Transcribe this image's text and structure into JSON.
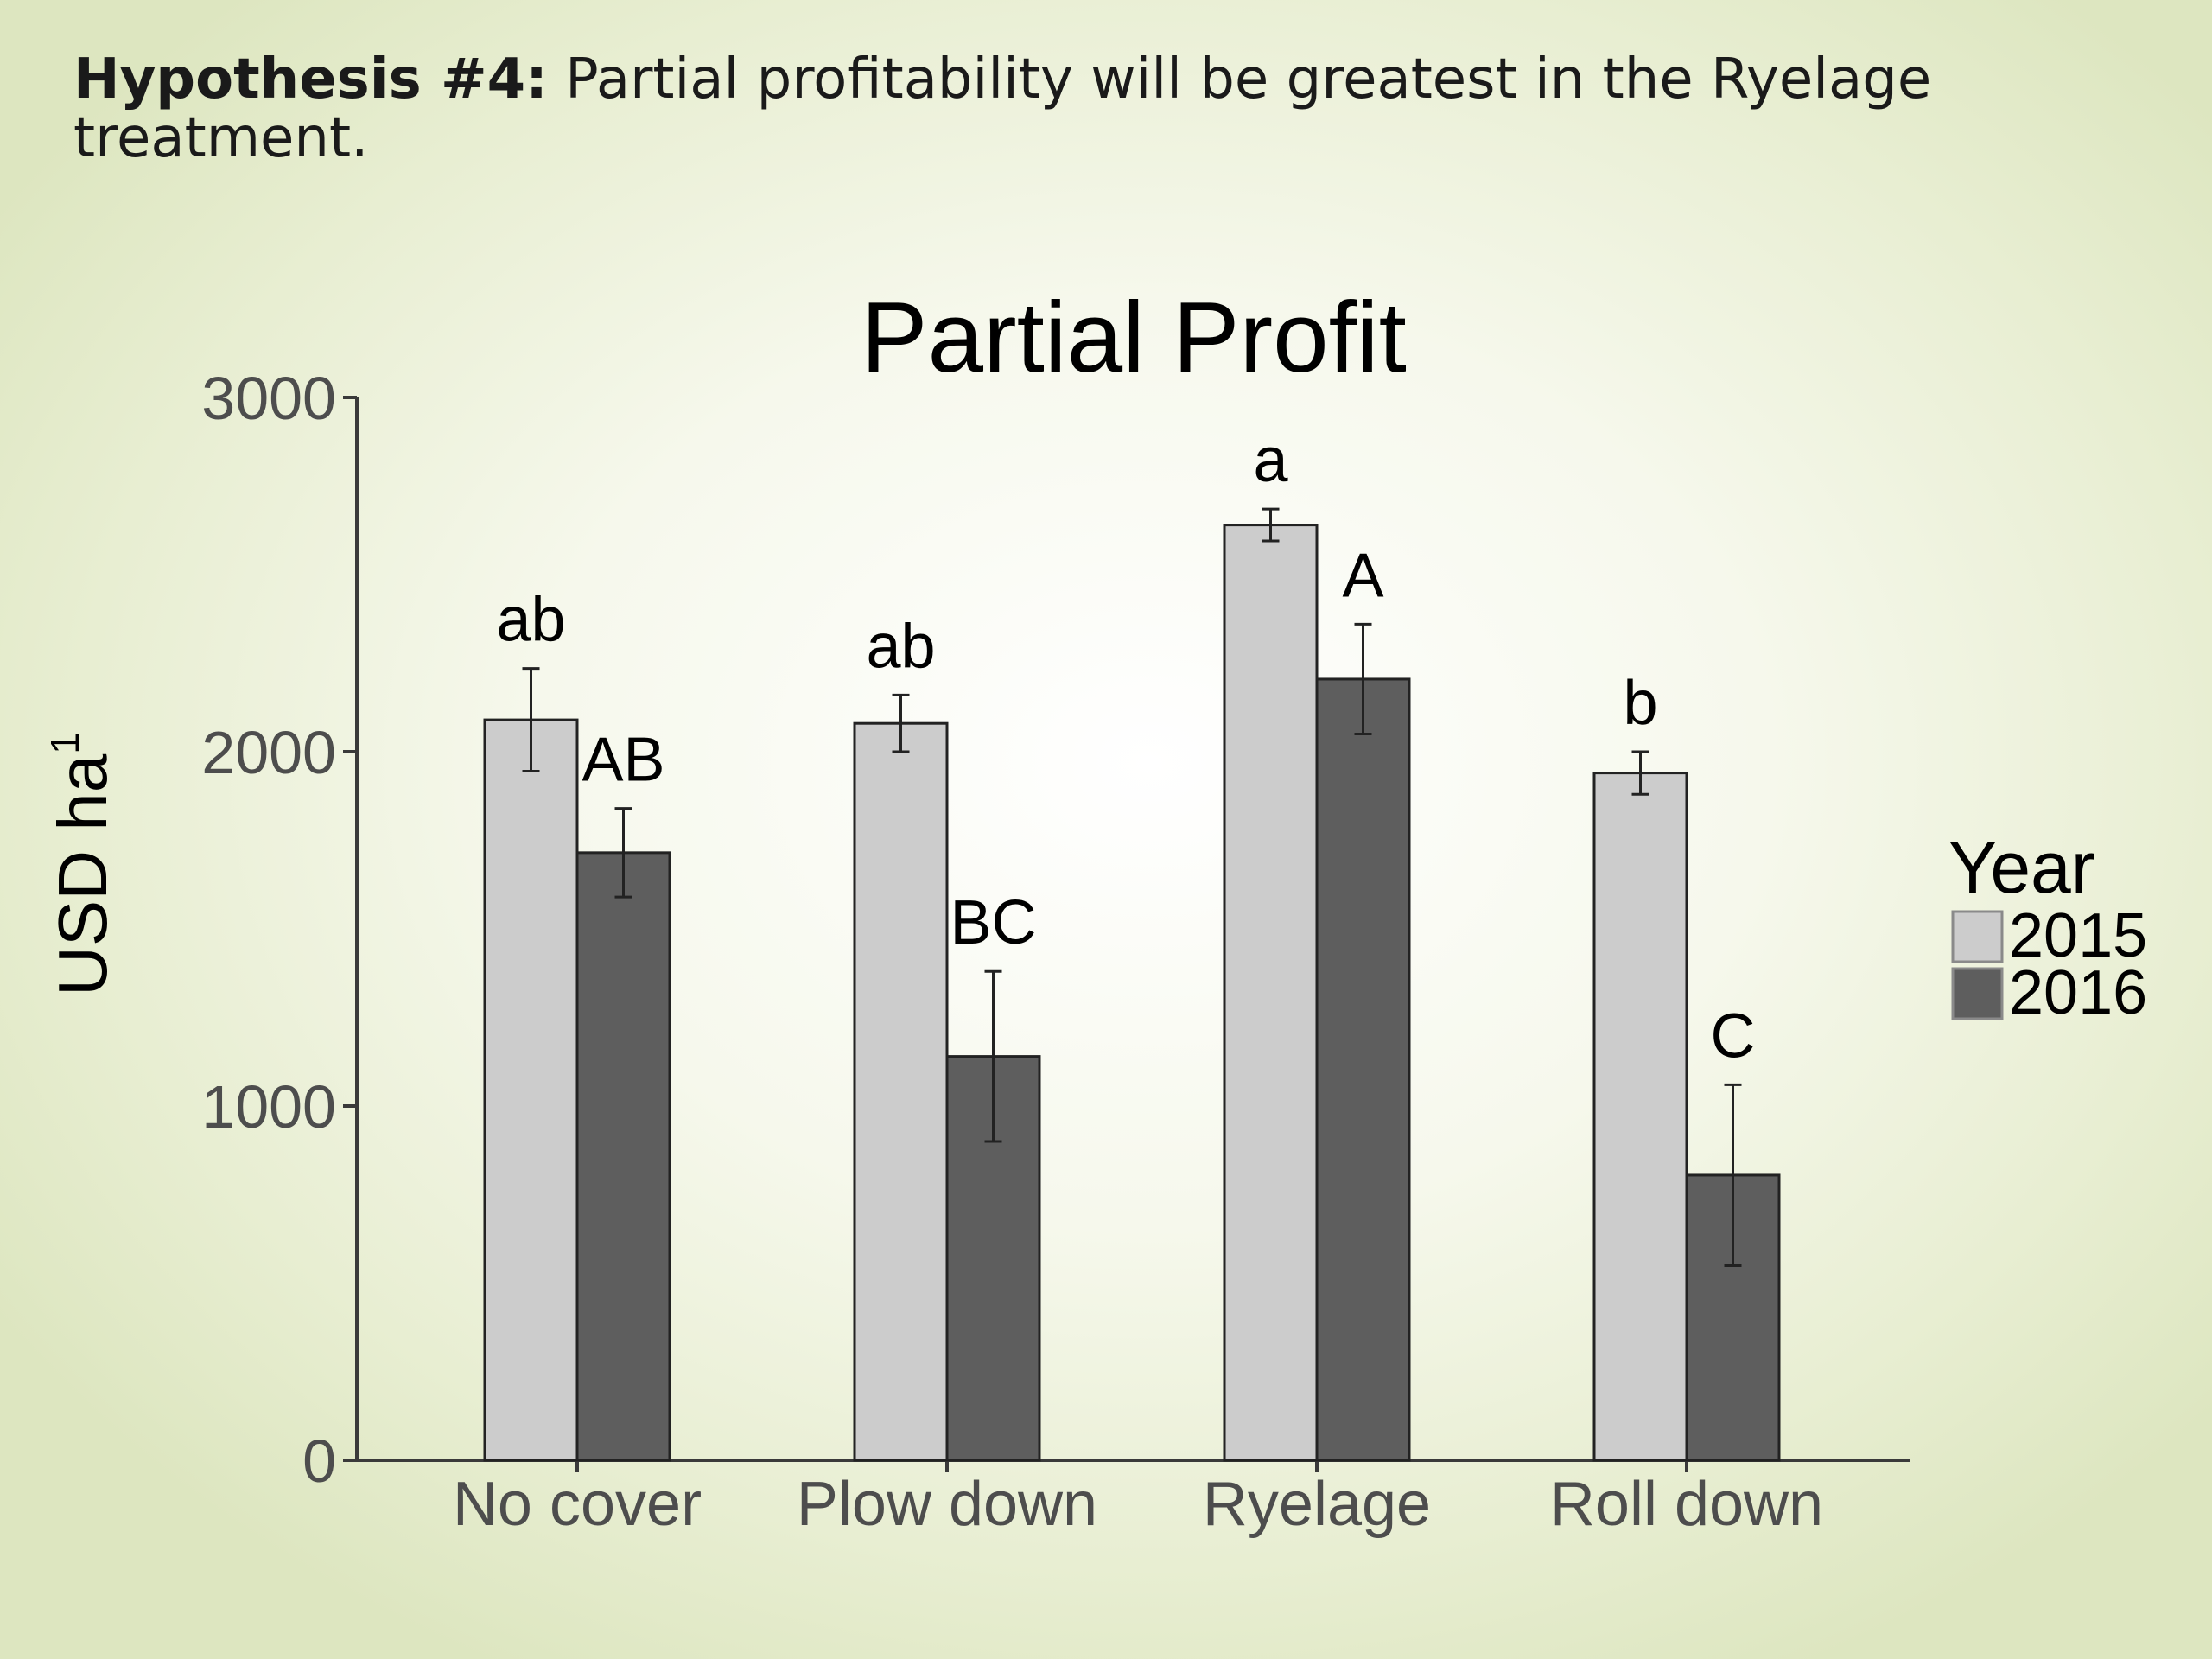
{
  "slide": {
    "heading_bold": "Hypothesis #4:",
    "heading_text": " Partial profitability will be greatest in the Ryelage treatment."
  },
  "chart_data": {
    "type": "bar",
    "title": "Partial Profit",
    "xlabel": "",
    "ylabel": "USD ha",
    "ylabel_superscript": "1",
    "ylim": [
      0,
      3000
    ],
    "yticks": [
      0,
      1000,
      2000,
      3000
    ],
    "ytick_labels": [
      "0",
      "1000",
      "2000",
      "3000"
    ],
    "grid": false,
    "categories": [
      "No cover",
      "Plow down",
      "Ryelage",
      "Roll down"
    ],
    "series": [
      {
        "name": "2015",
        "color": "#cccccc",
        "values": [
          2090,
          2080,
          2640,
          1940
        ],
        "errors": [
          145,
          80,
          45,
          60
        ],
        "labels": [
          "ab",
          "ab",
          "a",
          "b"
        ]
      },
      {
        "name": "2016",
        "color": "#5e5e5e",
        "values": [
          1715,
          1140,
          2205,
          805
        ],
        "errors": [
          125,
          240,
          155,
          255
        ],
        "labels": [
          "AB",
          "BC",
          "A",
          "C"
        ]
      }
    ],
    "legend": {
      "title": "Year",
      "position": "right",
      "items": [
        "2015",
        "2016"
      ]
    }
  }
}
